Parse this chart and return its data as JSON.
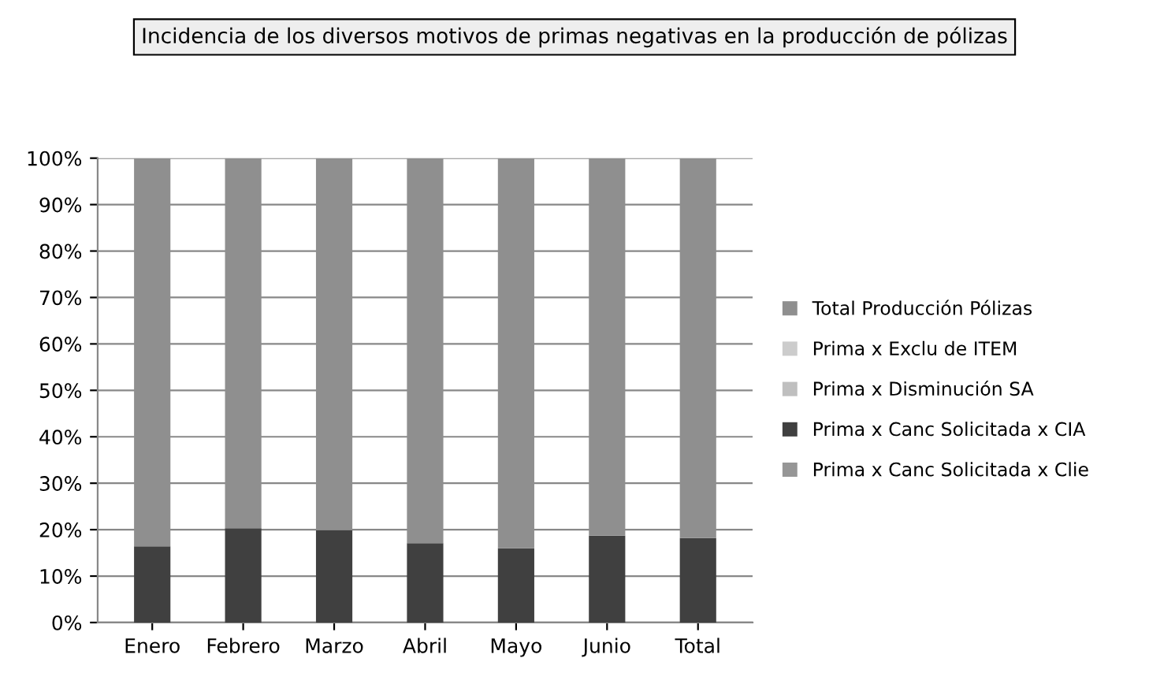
{
  "chart_data": {
    "type": "bar",
    "stacked": true,
    "title": "Incidencia de los diversos motivos de primas negativas en la producción de pólizas",
    "categories": [
      "Enero",
      "Febrero",
      "Marzo",
      "Abril",
      "Mayo",
      "Junio",
      "Total"
    ],
    "series": [
      {
        "name": "Prima x Canc Solicitada x Clie",
        "color": "#969696",
        "values": [
          0,
          0,
          0,
          0,
          0,
          0,
          0
        ]
      },
      {
        "name": "Prima x Canc Solicitada x CIA",
        "color": "#404040",
        "values": [
          16.4,
          20.3,
          19.9,
          17.1,
          16.0,
          18.7,
          18.2
        ]
      },
      {
        "name": "Prima x Disminución SA",
        "color": "#bfbfbf",
        "values": [
          0,
          0,
          0,
          0,
          0,
          0,
          0
        ]
      },
      {
        "name": "Prima x Exclu de ITEM",
        "color": "#cccccc",
        "values": [
          0,
          0,
          0,
          0,
          0,
          0,
          0
        ]
      },
      {
        "name": "Total Producción Pólizas",
        "color": "#8f8f8f",
        "values": [
          83.6,
          79.7,
          80.1,
          82.9,
          84.0,
          81.3,
          81.8
        ]
      }
    ],
    "ylim": [
      0,
      100
    ],
    "yticks": [
      {
        "value": 0,
        "label": "0%"
      },
      {
        "value": 10,
        "label": "10%"
      },
      {
        "value": 20,
        "label": "20%"
      },
      {
        "value": 30,
        "label": "30%"
      },
      {
        "value": 40,
        "label": "40%"
      },
      {
        "value": 50,
        "label": "50%"
      },
      {
        "value": 60,
        "label": "60%"
      },
      {
        "value": 70,
        "label": "70%"
      },
      {
        "value": 80,
        "label": "80%"
      },
      {
        "value": 90,
        "label": "90%"
      },
      {
        "value": 100,
        "label": "100%"
      }
    ],
    "grid": "y",
    "legend": "right"
  }
}
